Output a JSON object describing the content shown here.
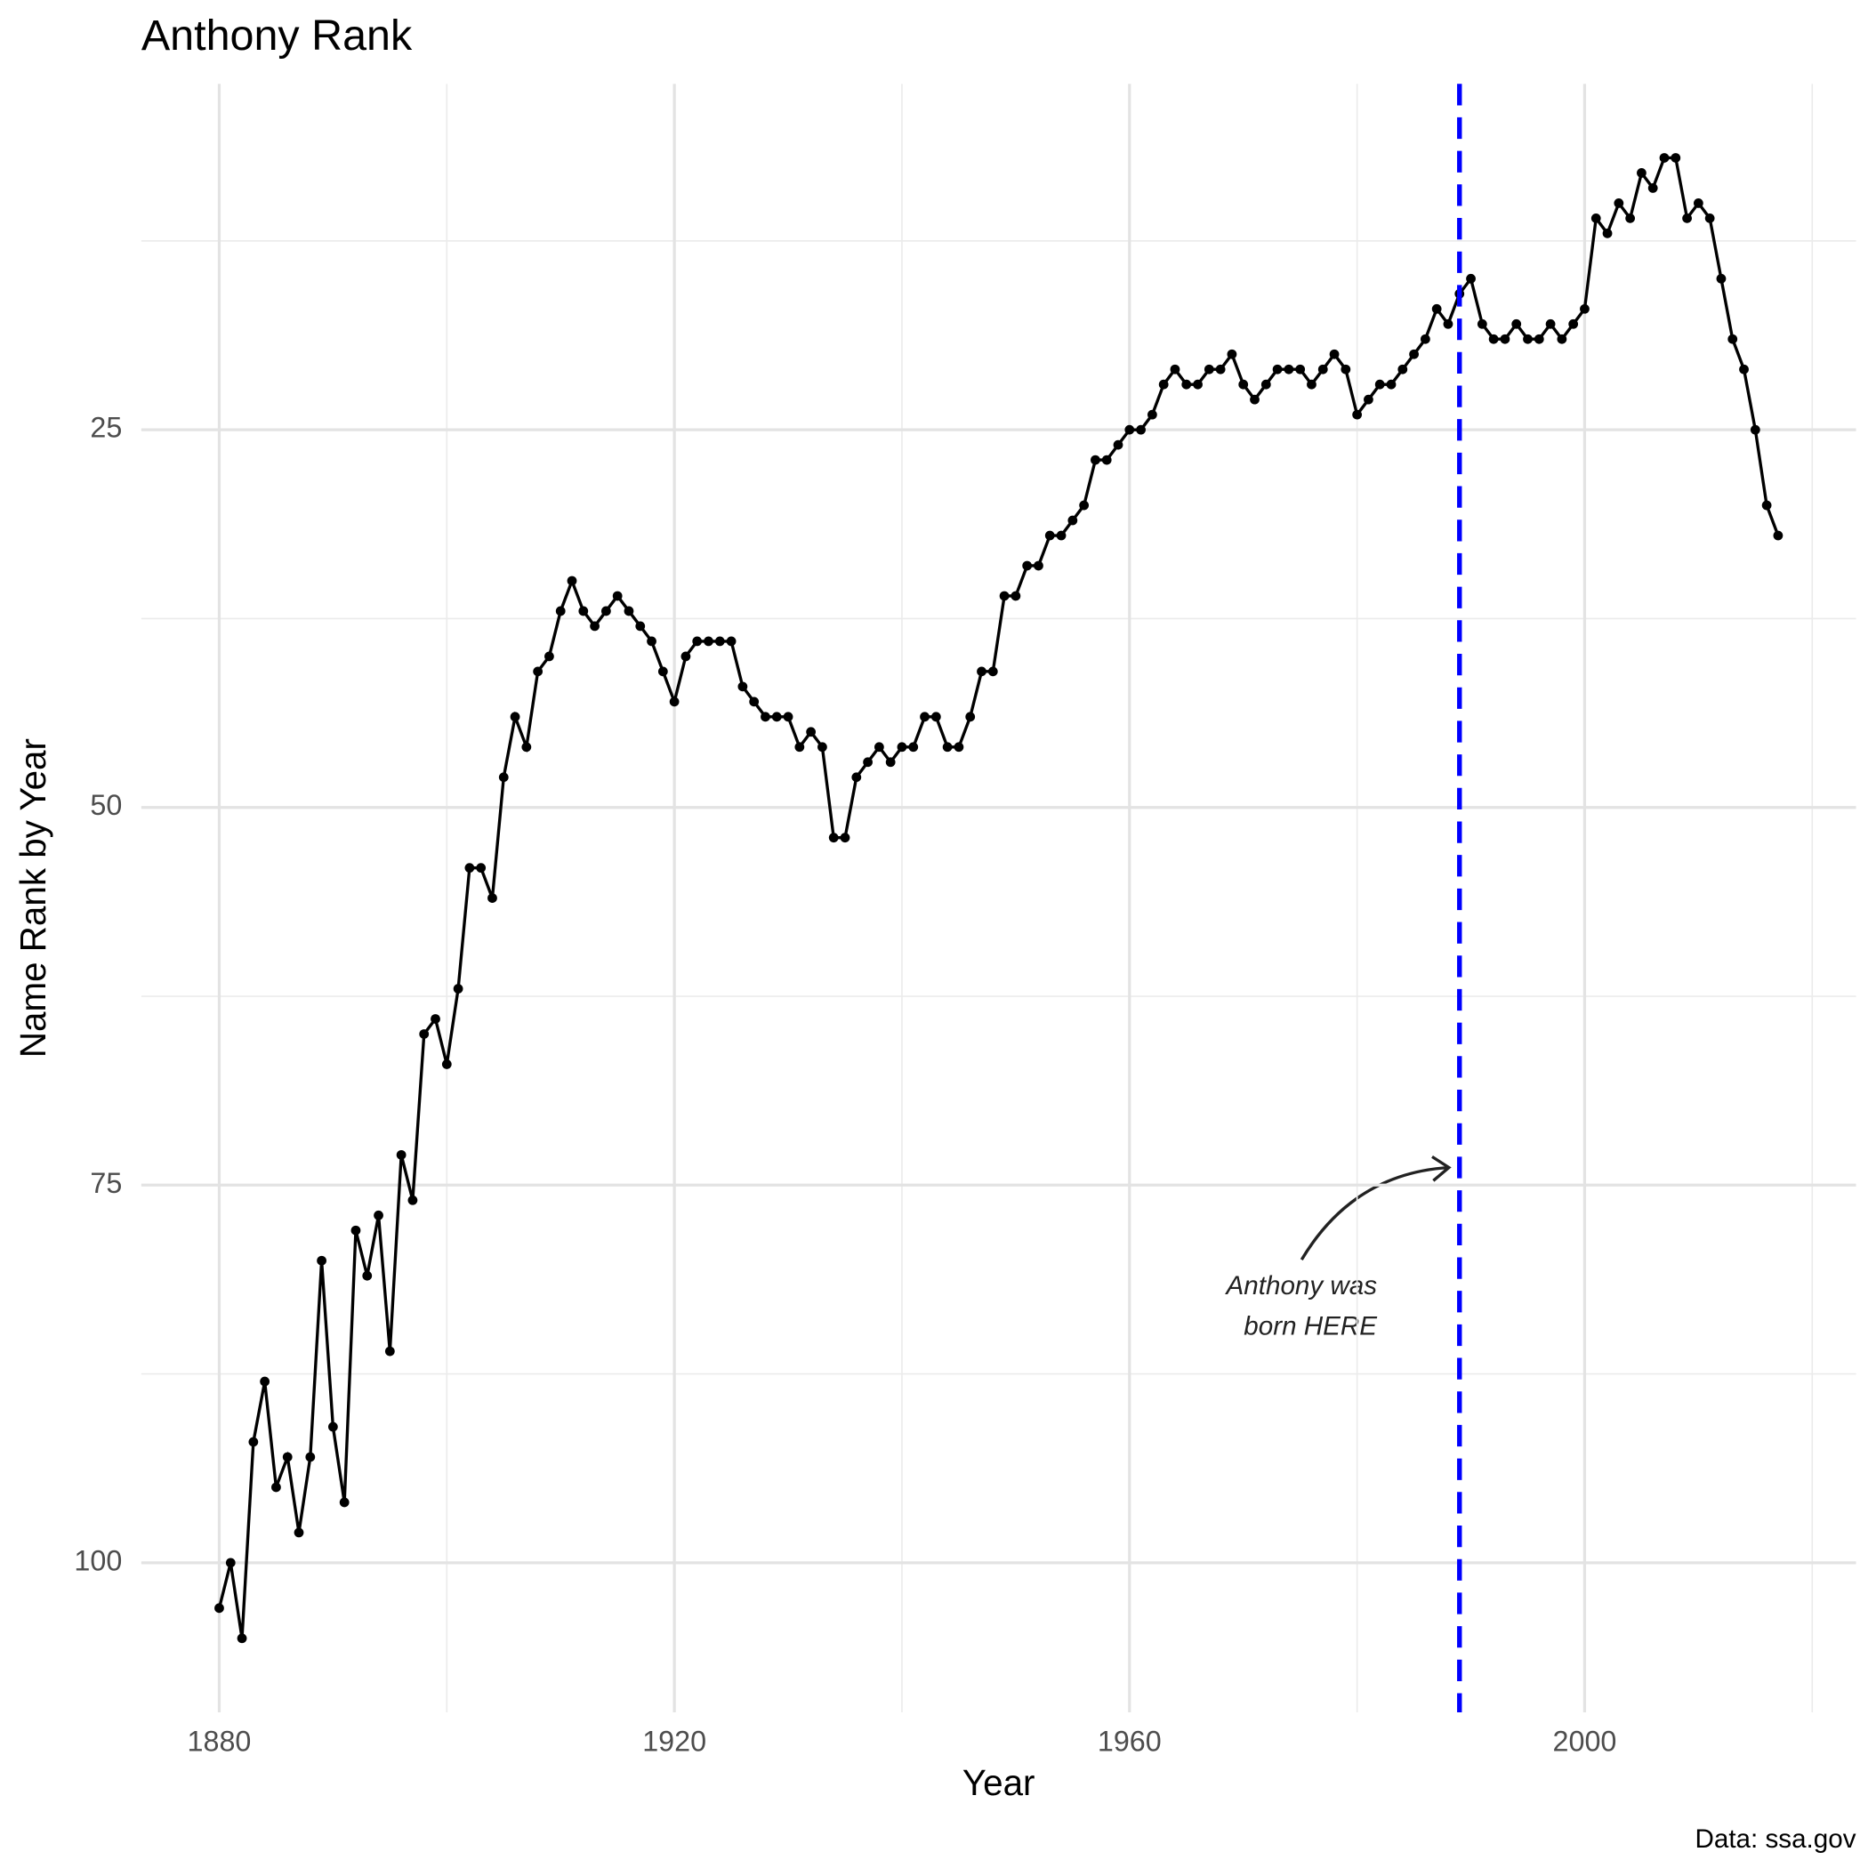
{
  "chart_data": {
    "type": "line",
    "title": "Anthony Rank",
    "x_label": "Year",
    "y_label": "Name Rank by Year",
    "caption": "Data: ssa.gov",
    "x": [
      1880,
      1881,
      1882,
      1883,
      1884,
      1885,
      1886,
      1887,
      1888,
      1889,
      1890,
      1891,
      1892,
      1893,
      1894,
      1895,
      1896,
      1897,
      1898,
      1899,
      1900,
      1901,
      1902,
      1903,
      1904,
      1905,
      1906,
      1907,
      1908,
      1909,
      1910,
      1911,
      1912,
      1913,
      1914,
      1915,
      1916,
      1917,
      1918,
      1919,
      1920,
      1921,
      1922,
      1923,
      1924,
      1925,
      1926,
      1927,
      1928,
      1929,
      1930,
      1931,
      1932,
      1933,
      1934,
      1935,
      1936,
      1937,
      1938,
      1939,
      1940,
      1941,
      1942,
      1943,
      1944,
      1945,
      1946,
      1947,
      1948,
      1949,
      1950,
      1951,
      1952,
      1953,
      1954,
      1955,
      1956,
      1957,
      1958,
      1959,
      1960,
      1961,
      1962,
      1963,
      1964,
      1965,
      1966,
      1967,
      1968,
      1969,
      1970,
      1971,
      1972,
      1973,
      1974,
      1975,
      1976,
      1977,
      1978,
      1979,
      1980,
      1981,
      1982,
      1983,
      1984,
      1985,
      1986,
      1987,
      1988,
      1989,
      1990,
      1991,
      1992,
      1993,
      1994,
      1995,
      1996,
      1997,
      1998,
      1999,
      2000,
      2001,
      2002,
      2003,
      2004,
      2005,
      2006,
      2007,
      2008,
      2009,
      2010,
      2011,
      2012,
      2013,
      2014,
      2015,
      2016,
      2017
    ],
    "values": [
      103,
      100,
      105,
      92,
      88,
      95,
      93,
      98,
      93,
      80,
      91,
      96,
      78,
      81,
      77,
      86,
      73,
      76,
      65,
      64,
      67,
      62,
      54,
      54,
      56,
      48,
      44,
      46,
      41,
      40,
      37,
      35,
      37,
      38,
      37,
      36,
      37,
      38,
      39,
      41,
      43,
      40,
      39,
      39,
      39,
      39,
      42,
      43,
      44,
      44,
      44,
      46,
      45,
      46,
      52,
      52,
      48,
      47,
      46,
      47,
      46,
      46,
      44,
      44,
      46,
      46,
      44,
      41,
      41,
      36,
      36,
      34,
      34,
      32,
      32,
      31,
      30,
      27,
      27,
      26,
      25,
      25,
      24,
      22,
      21,
      22,
      22,
      21,
      21,
      20,
      22,
      23,
      22,
      21,
      21,
      21,
      22,
      21,
      20,
      21,
      24,
      23,
      22,
      22,
      21,
      20,
      19,
      17,
      18,
      16,
      15,
      18,
      19,
      19,
      18,
      19,
      19,
      18,
      19,
      18,
      17,
      11,
      12,
      10,
      11,
      8,
      9,
      7,
      7,
      11,
      10,
      11,
      15,
      19,
      21,
      25,
      30,
      32
    ],
    "color": "#000000",
    "xlim": [
      1873.15,
      2023.85
    ],
    "xticks": [
      1880,
      1920,
      1960,
      2000
    ],
    "x_minor_ticks": [
      1900,
      1940,
      1980,
      2020
    ],
    "ylim": [
      2.1,
      109.9
    ],
    "y_reversed": true,
    "yticks": [
      25,
      50,
      75,
      100
    ],
    "y_minor_ticks": [
      12.5,
      37.5,
      62.5,
      87.5
    ],
    "grid": true,
    "vline": {
      "x": 1989,
      "color": "#0000ff"
    },
    "annotation": [
      "Anthony was",
      "born HERE"
    ]
  }
}
